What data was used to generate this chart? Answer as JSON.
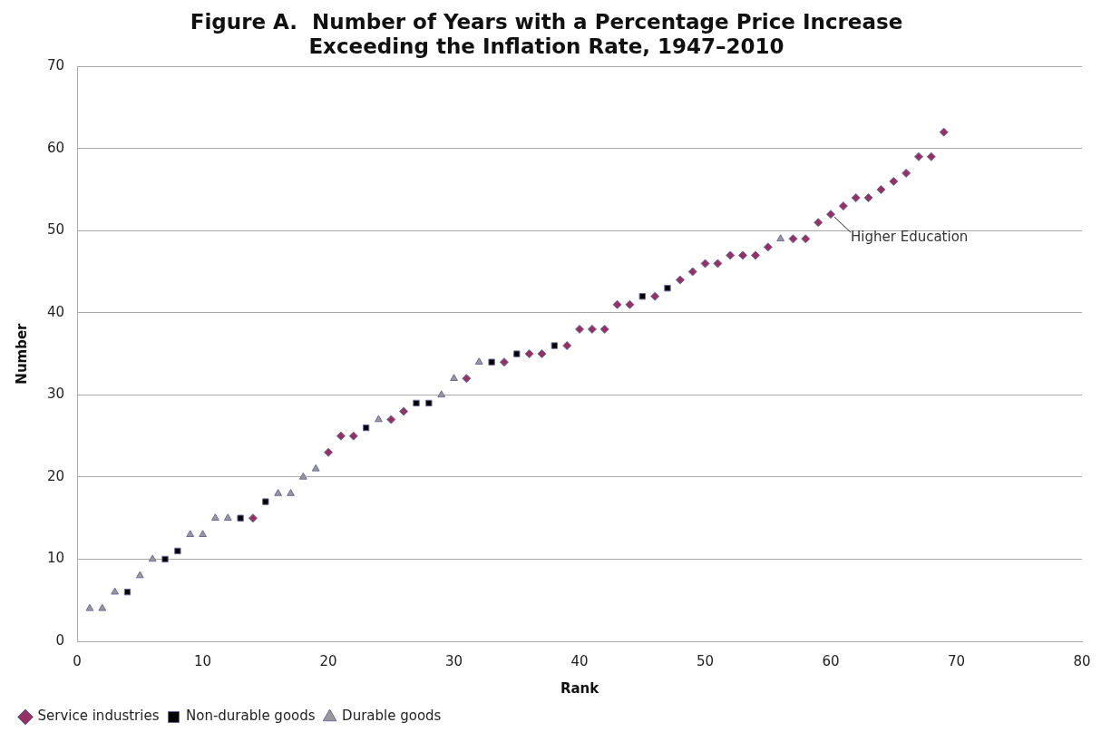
{
  "chart_data": {
    "type": "scatter",
    "title": [
      "Figure A.  Number of Years with a Percentage Price Increase",
      "Exceeding the Inflation Rate, 1947–2010"
    ],
    "xlabel": "Rank",
    "ylabel": "Number",
    "xlim": [
      0,
      80
    ],
    "xticks": [
      0,
      10,
      20,
      30,
      40,
      50,
      60,
      70,
      80
    ],
    "ylim": [
      0,
      70
    ],
    "yticks": [
      0,
      10,
      20,
      30,
      40,
      50,
      60,
      70
    ],
    "grid": "y",
    "legend": "bottom left",
    "series": [
      {
        "name": "Service industries",
        "color": "#953163",
        "marker": "diamond",
        "x": [
          14,
          20,
          21,
          22,
          25,
          26,
          31,
          34,
          36,
          37,
          39,
          40,
          41,
          42,
          43,
          44,
          46,
          48,
          49,
          50,
          51,
          52,
          53,
          54,
          55,
          57,
          58,
          59,
          60,
          61,
          62,
          63,
          64,
          65,
          66,
          67,
          68,
          69
        ],
        "values": [
          15,
          23,
          25,
          25,
          27,
          28,
          32,
          34,
          35,
          35,
          36,
          38,
          38,
          38,
          41,
          41,
          42,
          44,
          45,
          46,
          46,
          47,
          47,
          47,
          48,
          49,
          49,
          51,
          52,
          53,
          54,
          54,
          55,
          56,
          57,
          59,
          59,
          62
        ]
      },
      {
        "name": "Non-durable goods",
        "color": "#000000",
        "marker": "square",
        "x": [
          4,
          7,
          8,
          13,
          15,
          23,
          27,
          28,
          33,
          35,
          38,
          45,
          47
        ],
        "values": [
          6,
          10,
          11,
          15,
          17,
          26,
          29,
          29,
          34,
          35,
          36,
          42,
          43
        ]
      },
      {
        "name": "Durable goods",
        "color": "#999999",
        "marker": "triangle",
        "x": [
          1,
          2,
          3,
          5,
          6,
          9,
          10,
          11,
          12,
          16,
          17,
          18,
          19,
          24,
          29,
          30,
          32,
          56
        ],
        "values": [
          4,
          4,
          6,
          8,
          10,
          13,
          13,
          15,
          15,
          18,
          18,
          20,
          21,
          27,
          30,
          32,
          34,
          49
        ]
      }
    ],
    "annotations": [
      {
        "text": "Higher Education",
        "x": 60,
        "y": 52
      }
    ]
  }
}
